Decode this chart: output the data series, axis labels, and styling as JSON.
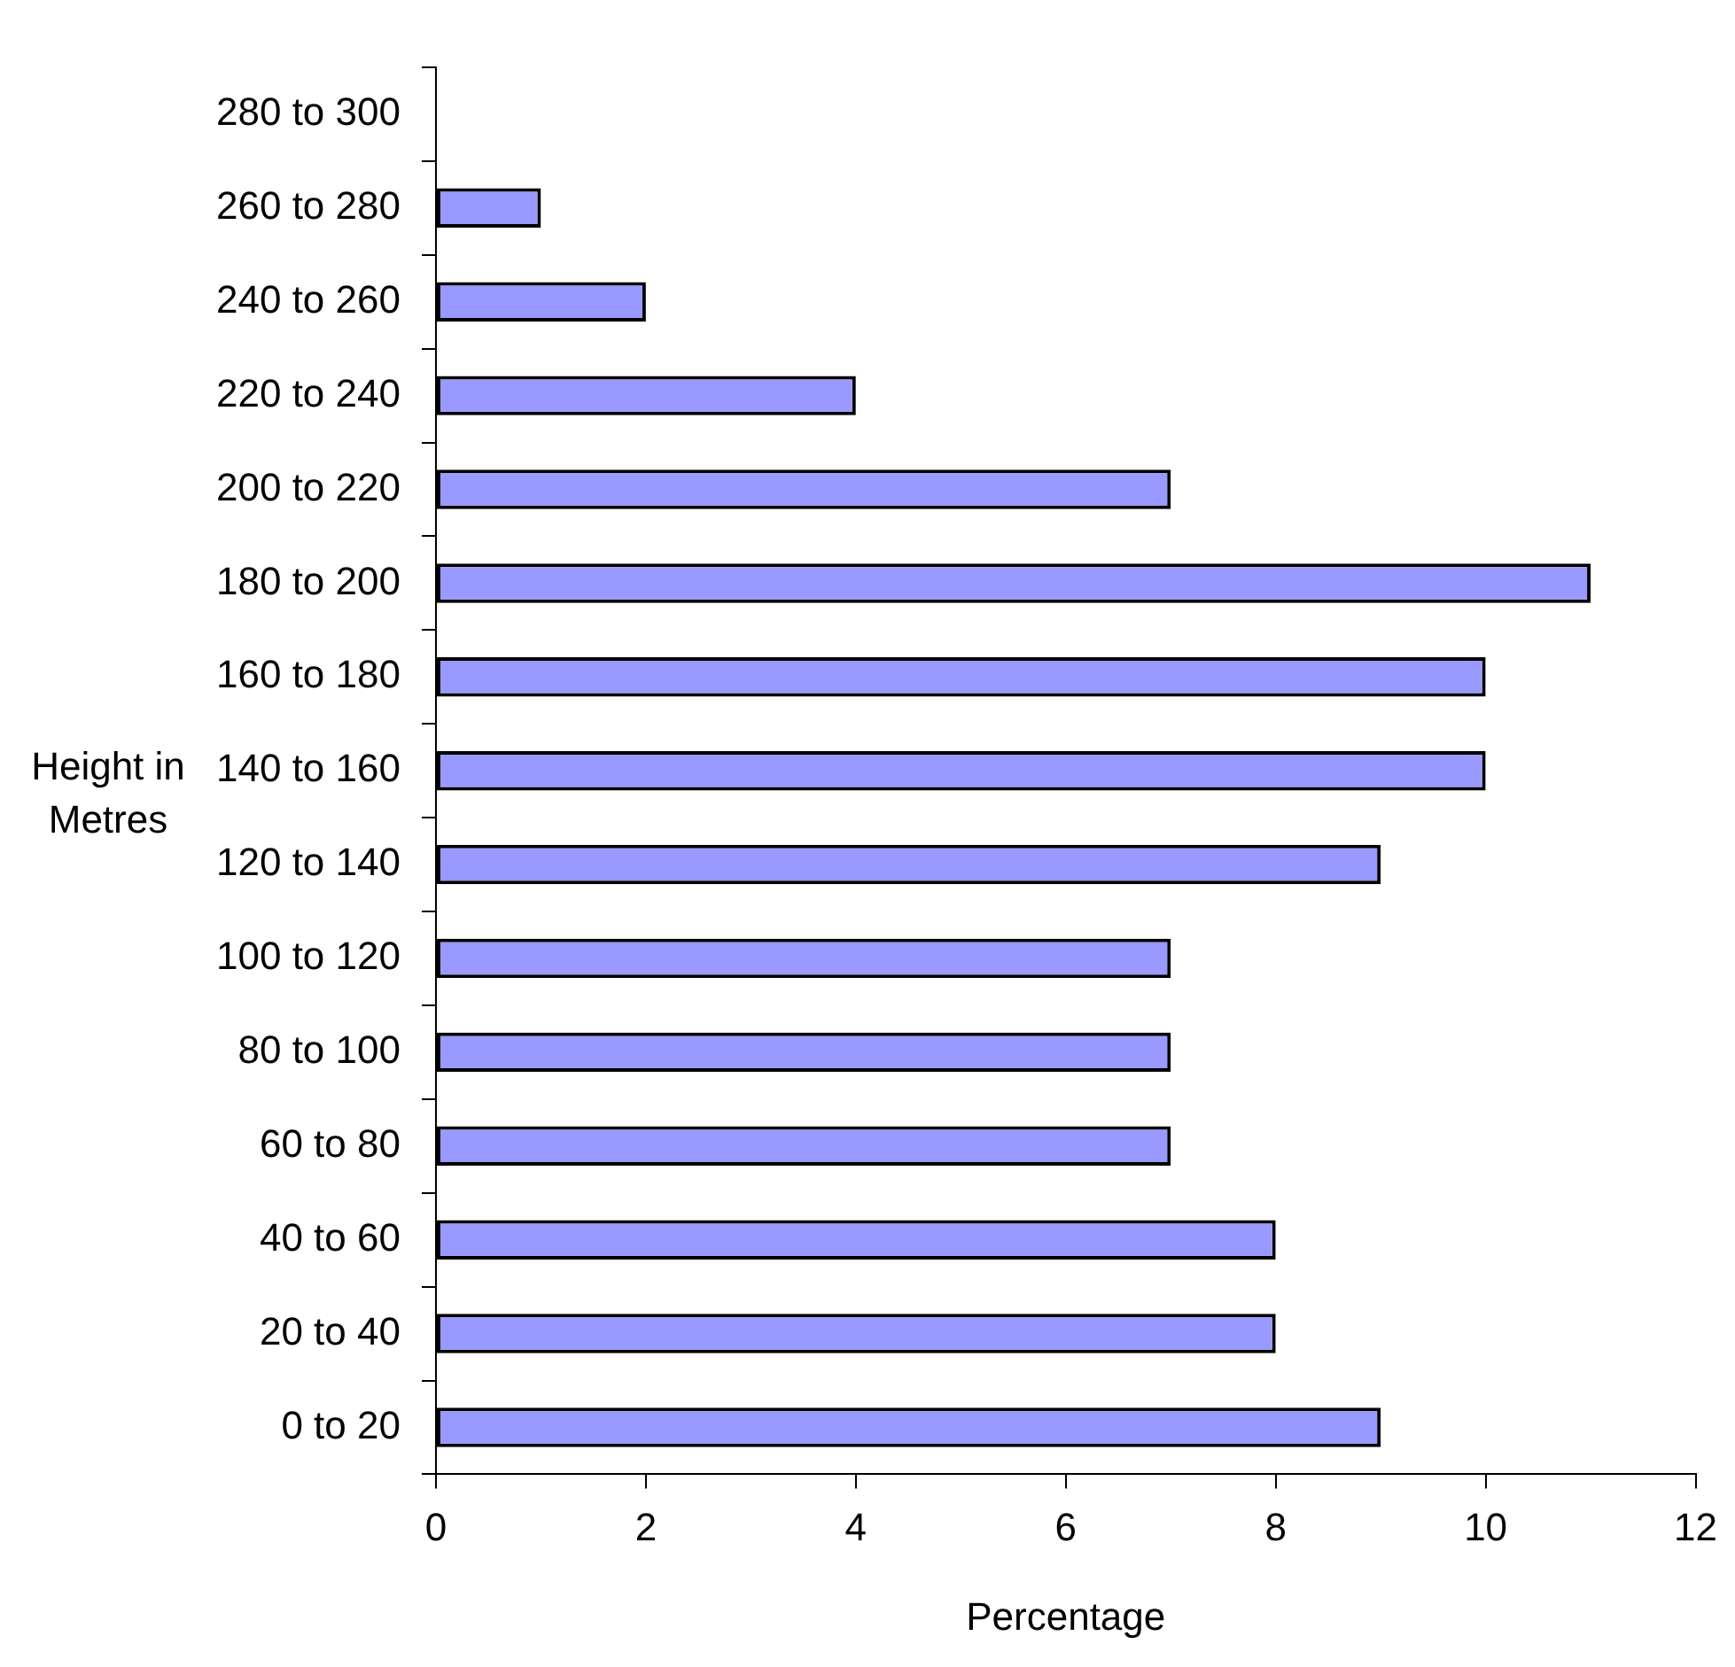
{
  "chart_data": {
    "type": "bar",
    "orientation": "horizontal",
    "xlabel": "Percentage",
    "ylabel": "Height in Metres",
    "categories": [
      "280 to 300",
      "260 to 280",
      "240 to 260",
      "220 to 240",
      "200 to 220",
      "180 to 200",
      "160 to 180",
      "140 to 160",
      "120 to 140",
      "100 to 120",
      "80 to 100",
      "60 to 80",
      "40 to 60",
      "20 to 40",
      "0 to 20"
    ],
    "values": [
      0,
      1,
      2,
      4,
      7,
      11,
      10,
      10,
      9,
      7,
      7,
      7,
      8,
      8,
      9
    ],
    "color": "#9999ff",
    "xlim": [
      0,
      12
    ],
    "xticks": [
      0,
      2,
      4,
      6,
      8,
      10,
      12
    ],
    "grid": false,
    "legend": false
  }
}
